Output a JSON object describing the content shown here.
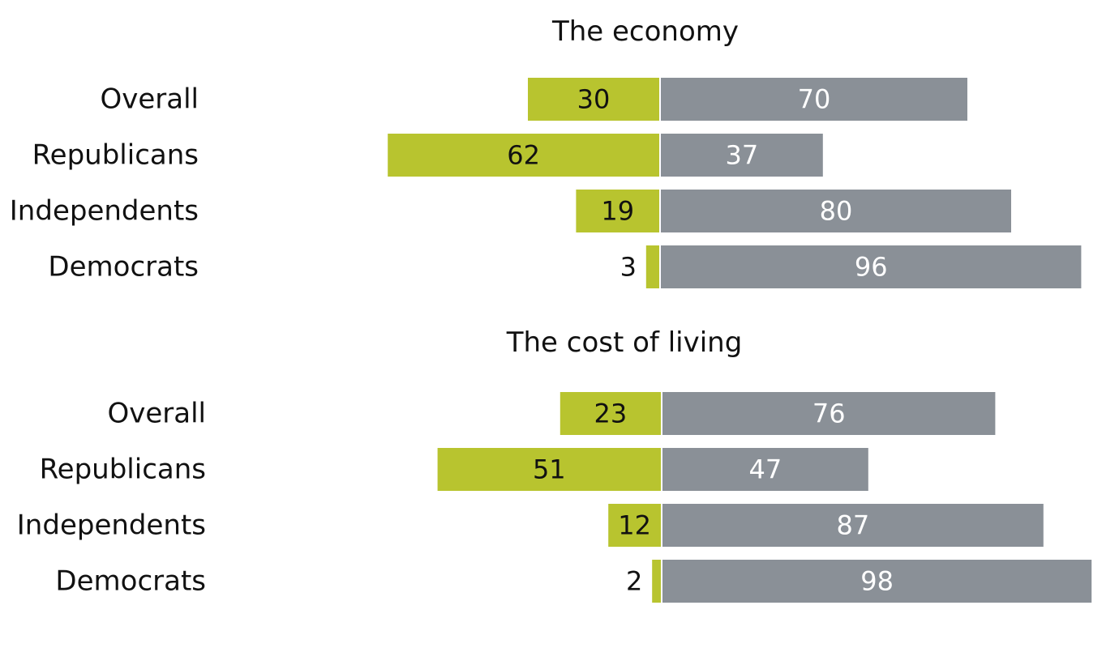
{
  "chart_data": [
    {
      "type": "bar",
      "title": "The economy",
      "categories": [
        "Overall",
        "Republicans",
        "Independents",
        "Democrats"
      ],
      "series": [
        {
          "values": [
            30,
            62,
            19,
            3
          ],
          "color": "#b8c42f"
        },
        {
          "values": [
            70,
            37,
            80,
            96
          ],
          "color": "#8a9097"
        }
      ],
      "xlim": [
        -62,
        98
      ],
      "grid": false,
      "legend": "none",
      "orientation": "horizontal-diverging"
    },
    {
      "type": "bar",
      "title": "The cost of living",
      "categories": [
        "Overall",
        "Republicans",
        "Independents",
        "Democrats"
      ],
      "series": [
        {
          "values": [
            23,
            51,
            12,
            2
          ],
          "color": "#b8c42f"
        },
        {
          "values": [
            76,
            47,
            87,
            98
          ],
          "color": "#8a9097"
        }
      ],
      "xlim": [
        -62,
        98
      ],
      "grid": false,
      "legend": "none",
      "orientation": "horizontal-diverging"
    }
  ]
}
